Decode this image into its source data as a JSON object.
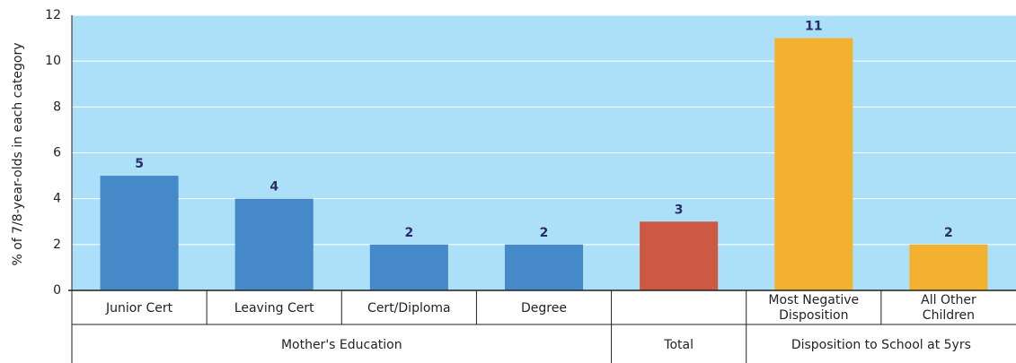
{
  "chart_data": {
    "type": "bar",
    "y_axis_label": "% of 7/8-year-olds in each category",
    "categories": [
      "Junior Cert",
      "Leaving Cert",
      "Cert/Diploma",
      "Degree",
      null,
      "Most Negative Disposition",
      "All Other Children"
    ],
    "values": [
      5,
      4,
      2,
      2,
      3,
      11,
      2
    ],
    "colors": [
      "#4689c8",
      "#4689c8",
      "#4689c8",
      "#4689c8",
      "#cd5944",
      "#f3b130",
      "#f3b130"
    ],
    "groups": [
      {
        "name": "Mother's Education",
        "count": 4
      },
      {
        "name": "Total",
        "count": 1
      },
      {
        "name": "Disposition to School at 5yrs",
        "count": 2
      }
    ],
    "ylim": [
      0,
      12
    ],
    "yticks": [
      0,
      2,
      4,
      6,
      8,
      10,
      12
    ],
    "grid": true,
    "background": "#ace0f8"
  }
}
